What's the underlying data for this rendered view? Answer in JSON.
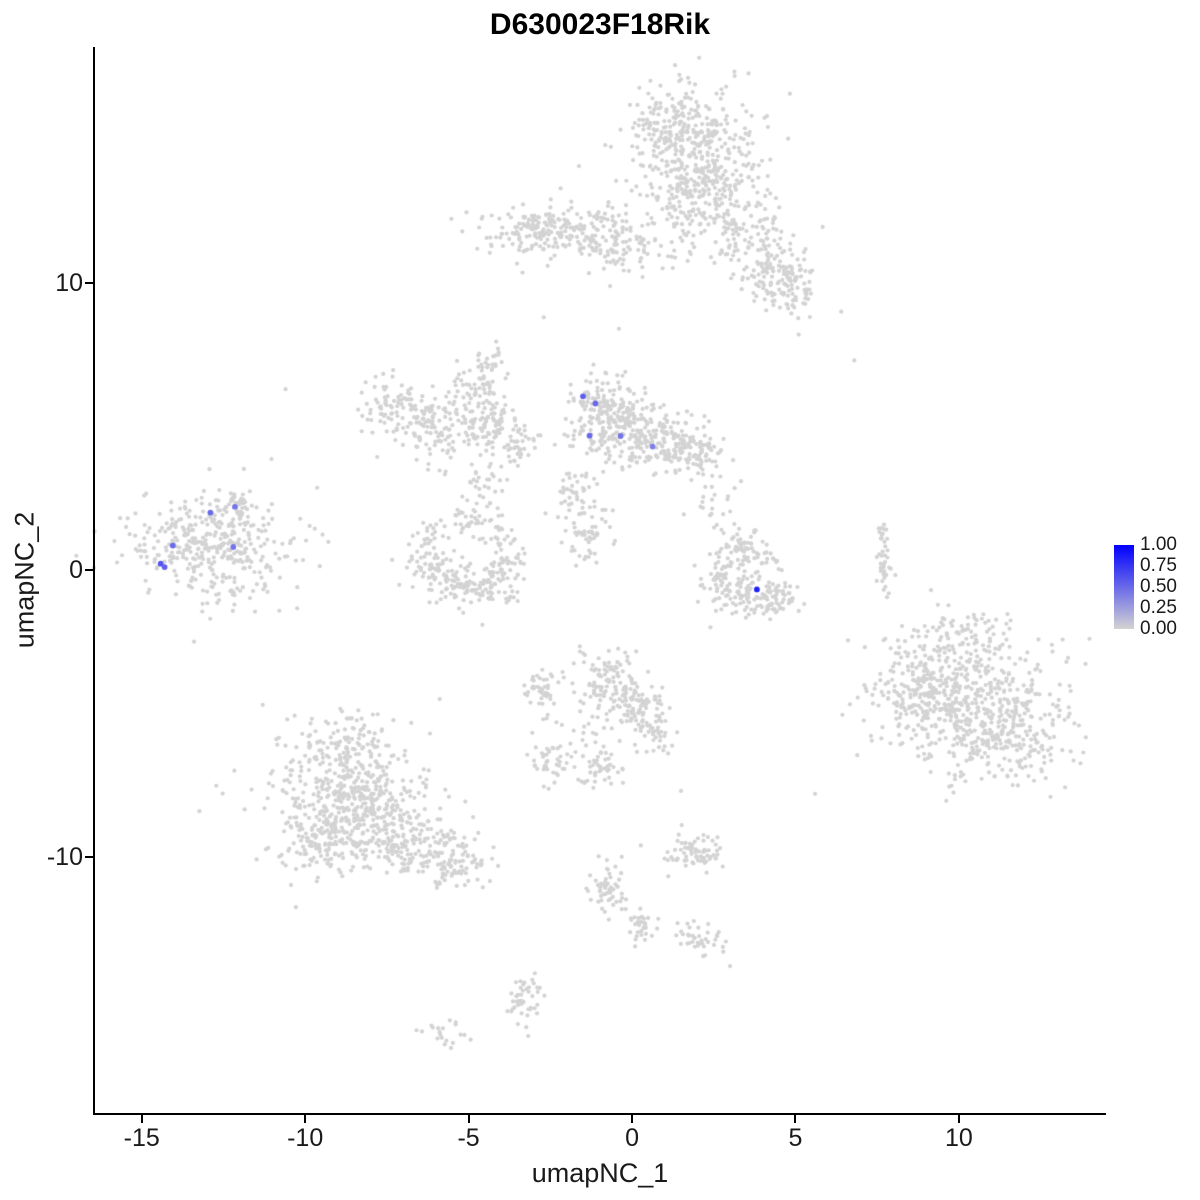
{
  "chart_data": {
    "type": "scatter",
    "title": "D630023F18Rik",
    "xlabel": "umapNC_1",
    "ylabel": "umapNC_2",
    "xlim": [
      -16.43,
      14.47
    ],
    "ylim": [
      -18.92,
      18.22
    ],
    "x_ticks": [
      "-15",
      "-10",
      "-5",
      "0",
      "5",
      "10"
    ],
    "x_tick_values": [
      -15,
      -10,
      -5,
      0,
      5,
      10
    ],
    "y_ticks": [
      "10",
      "0",
      "-10"
    ],
    "y_tick_values": [
      10,
      0,
      -10
    ],
    "grid": false,
    "background": "#FFFFFF",
    "legend_position": "right",
    "legend_labels": [
      "1.00",
      "0.75",
      "0.50",
      "0.25",
      "0.00"
    ],
    "legend_breaks": [
      1.0,
      0.75,
      0.5,
      0.25,
      0.0
    ],
    "color_low": "#D3D3D3",
    "color_high": "#0000FF",
    "background_clusters": [
      {
        "name": "top-large",
        "blobs": [
          [
            1.9,
            14.6,
            1.0,
            1.2,
            330
          ],
          [
            2.3,
            13.2,
            0.85,
            0.9,
            180
          ],
          [
            1.3,
            15.6,
            0.6,
            0.6,
            80
          ],
          [
            3.5,
            11.6,
            0.6,
            0.7,
            90
          ],
          [
            4.4,
            10.4,
            0.55,
            0.6,
            90
          ],
          [
            5.0,
            9.7,
            0.45,
            0.45,
            60
          ]
        ]
      },
      {
        "name": "upper-left-band",
        "blobs": [
          [
            -2.0,
            11.8,
            1.2,
            0.5,
            200
          ],
          [
            -3.3,
            12.0,
            0.45,
            0.35,
            45
          ],
          [
            -0.4,
            11.2,
            0.5,
            0.45,
            60
          ],
          [
            0.9,
            11.4,
            0.7,
            0.5,
            25
          ]
        ]
      },
      {
        "name": "mid-left-butterfly",
        "blobs": [
          [
            -7.1,
            5.6,
            0.6,
            0.55,
            90
          ],
          [
            -5.9,
            4.9,
            0.75,
            0.65,
            120
          ],
          [
            -4.7,
            6.1,
            0.45,
            0.55,
            70
          ],
          [
            -4.3,
            4.9,
            0.4,
            0.45,
            55
          ],
          [
            -3.5,
            4.5,
            0.35,
            0.4,
            40
          ],
          [
            -4.3,
            7.0,
            0.2,
            0.5,
            30
          ]
        ]
      },
      {
        "name": "center-upper",
        "blobs": [
          [
            -1.0,
            5.9,
            0.55,
            0.5,
            110
          ],
          [
            -0.4,
            4.9,
            0.8,
            0.55,
            170
          ],
          [
            1.0,
            4.4,
            0.8,
            0.5,
            140
          ],
          [
            2.1,
            4.0,
            0.45,
            0.4,
            60
          ],
          [
            -1.7,
            2.6,
            0.4,
            0.6,
            50
          ],
          [
            -1.4,
            1.1,
            0.35,
            0.5,
            45
          ]
        ]
      },
      {
        "name": "far-left",
        "blobs": [
          [
            -13.0,
            1.0,
            1.15,
            0.8,
            330
          ],
          [
            -11.9,
            2.3,
            0.22,
            0.45,
            30
          ],
          [
            -12.4,
            -0.8,
            0.5,
            0.4,
            20
          ],
          [
            -13.0,
            1.0,
            1.8,
            1.2,
            40
          ]
        ]
      },
      {
        "name": "center-ring",
        "blobs": [
          [
            -6.3,
            0.9,
            0.3,
            0.45,
            45
          ],
          [
            -5.8,
            -0.2,
            0.45,
            0.4,
            70
          ],
          [
            -4.7,
            -0.6,
            0.55,
            0.35,
            80
          ],
          [
            -3.8,
            0.1,
            0.3,
            0.45,
            45
          ],
          [
            -4.1,
            1.3,
            0.35,
            0.35,
            28
          ],
          [
            -5.0,
            1.7,
            0.3,
            0.3,
            22
          ],
          [
            -4.6,
            2.8,
            0.25,
            0.5,
            30
          ]
        ]
      },
      {
        "name": "center-right-crescent",
        "blobs": [
          [
            3.3,
            0.9,
            0.3,
            0.4,
            45
          ],
          [
            2.9,
            -0.2,
            0.35,
            0.45,
            60
          ],
          [
            3.5,
            -1.0,
            0.5,
            0.35,
            70
          ],
          [
            4.4,
            -0.9,
            0.35,
            0.35,
            45
          ],
          [
            4.1,
            0.3,
            0.3,
            0.4,
            25
          ],
          [
            2.5,
            2.0,
            0.4,
            0.8,
            25
          ]
        ]
      },
      {
        "name": "right-sliver",
        "blobs": [
          [
            7.7,
            0.2,
            0.12,
            0.8,
            40
          ]
        ]
      },
      {
        "name": "right-large",
        "blobs": [
          [
            10.2,
            -4.5,
            1.4,
            1.2,
            450
          ],
          [
            11.5,
            -5.9,
            0.95,
            0.85,
            200
          ],
          [
            8.9,
            -3.9,
            0.7,
            0.65,
            110
          ],
          [
            10.0,
            -2.5,
            0.9,
            0.35,
            50
          ],
          [
            10.3,
            -1.8,
            0.8,
            0.25,
            18
          ]
        ]
      },
      {
        "name": "bottom-left-large",
        "blobs": [
          [
            -8.9,
            -7.3,
            1.0,
            0.95,
            280
          ],
          [
            -8.0,
            -8.7,
            0.95,
            0.75,
            240
          ],
          [
            -9.5,
            -9.4,
            0.65,
            0.55,
            110
          ],
          [
            -6.5,
            -9.7,
            0.75,
            0.5,
            120
          ],
          [
            -5.2,
            -10.3,
            0.5,
            0.35,
            60
          ],
          [
            -8.6,
            -5.7,
            0.7,
            0.4,
            45
          ],
          [
            -8.5,
            -8.0,
            1.7,
            1.4,
            40
          ]
        ]
      },
      {
        "name": "bottom-center",
        "blobs": [
          [
            -0.7,
            -3.8,
            0.5,
            0.5,
            100
          ],
          [
            0.2,
            -4.7,
            0.45,
            0.45,
            80
          ],
          [
            0.7,
            -5.6,
            0.3,
            0.4,
            40
          ],
          [
            -2.7,
            -4.2,
            0.28,
            0.4,
            40
          ],
          [
            -2.4,
            -6.6,
            0.3,
            0.4,
            45
          ],
          [
            -1.0,
            -7.0,
            0.35,
            0.35,
            45
          ],
          [
            -1.5,
            -5.3,
            0.8,
            0.8,
            25
          ]
        ]
      },
      {
        "name": "bottom-small-islands",
        "blobs": [
          [
            1.9,
            -9.8,
            0.5,
            0.32,
            70
          ],
          [
            -0.7,
            -11.2,
            0.28,
            0.5,
            55
          ],
          [
            0.2,
            -12.4,
            0.28,
            0.28,
            32
          ],
          [
            2.1,
            -12.9,
            0.38,
            0.28,
            40
          ],
          [
            -3.3,
            -15.0,
            0.28,
            0.45,
            45
          ],
          [
            -5.7,
            -16.1,
            0.45,
            0.22,
            20
          ]
        ]
      }
    ],
    "scattered_singles": [
      [
        -10.6,
        6.3
      ],
      [
        6.4,
        9.0
      ],
      [
        6.8,
        7.3
      ],
      [
        -2.7,
        8.8
      ],
      [
        5.1,
        8.2
      ],
      [
        -0.4,
        8.4
      ],
      [
        -13.4,
        -2.5
      ],
      [
        1.5,
        -7.7
      ],
      [
        3.0,
        -13.8
      ],
      [
        -4.0,
        3.6
      ],
      [
        2.4,
        -2.0
      ],
      [
        5.6,
        -7.8
      ],
      [
        -11.3,
        -4.7
      ],
      [
        0.5,
        16.6
      ]
    ],
    "expressing_cells": [
      {
        "x": -1.5,
        "y": 6.05,
        "value": 0.55
      },
      {
        "x": -1.12,
        "y": 5.8,
        "value": 0.5
      },
      {
        "x": -1.3,
        "y": 4.68,
        "value": 0.5
      },
      {
        "x": -0.35,
        "y": 4.67,
        "value": 0.45
      },
      {
        "x": 0.63,
        "y": 4.3,
        "value": 0.4
      },
      {
        "x": -12.9,
        "y": 2.0,
        "value": 0.5
      },
      {
        "x": -12.15,
        "y": 2.2,
        "value": 0.45
      },
      {
        "x": -14.05,
        "y": 0.85,
        "value": 0.5
      },
      {
        "x": -12.2,
        "y": 0.8,
        "value": 0.45
      },
      {
        "x": -14.42,
        "y": 0.22,
        "value": 0.6
      },
      {
        "x": -14.3,
        "y": 0.1,
        "value": 0.55
      },
      {
        "x": 3.82,
        "y": -0.68,
        "value": 0.85
      }
    ]
  }
}
